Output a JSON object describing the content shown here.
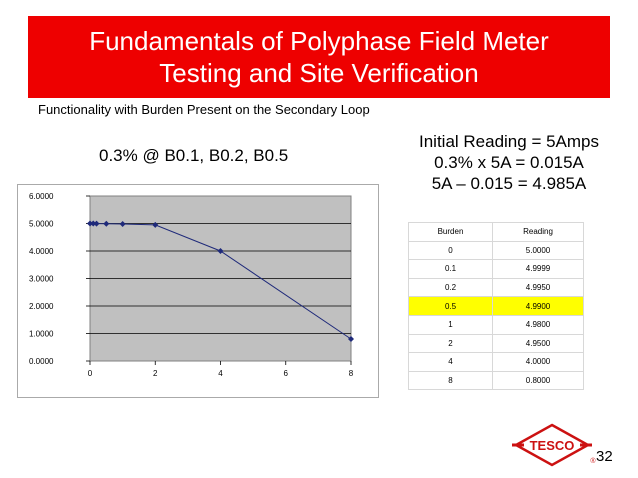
{
  "slide": {
    "title_line1": "Fundamentals of Polyphase Field Meter",
    "title_line2": "Testing and Site Verification",
    "subtitle": "Functionality with Burden Present on the Secondary Loop",
    "chart_caption": "0.3% @ B0.1, B0.2, B0.5",
    "calc_lines": [
      "Initial Reading = 5Amps",
      "0.3% x 5A = 0.015A",
      "5A – 0.015 = 4.985A"
    ],
    "page_number": "32",
    "logo_text": "TESCO",
    "logo_mark": "®"
  },
  "table": {
    "headers": [
      "Burden",
      "Reading"
    ],
    "rows": [
      [
        "0",
        "5.0000"
      ],
      [
        "0.1",
        "4.9999"
      ],
      [
        "0.2",
        "4.9950"
      ],
      [
        "0.5",
        "4.9900"
      ],
      [
        "1",
        "4.9800"
      ],
      [
        "2",
        "4.9500"
      ],
      [
        "4",
        "4.0000"
      ],
      [
        "8",
        "0.8000"
      ]
    ],
    "highlight_row_index": 3,
    "highlight_color": "#ffff00"
  },
  "chart_data": {
    "type": "line",
    "x": [
      0,
      0.1,
      0.2,
      0.5,
      1,
      2,
      4,
      8
    ],
    "series": [
      {
        "values": [
          5.0,
          4.9999,
          4.995,
          4.99,
          4.98,
          4.95,
          4.0,
          0.8
        ]
      }
    ],
    "xlim": [
      0,
      8
    ],
    "ylim": [
      0,
      6
    ],
    "x_ticks": [
      "0",
      "2",
      "4",
      "6",
      "8"
    ],
    "y_ticks": [
      "0.0000",
      "1.0000",
      "2.0000",
      "3.0000",
      "4.0000",
      "5.0000",
      "6.0000"
    ],
    "grid": true,
    "plot_background": "#c0c0c0",
    "line_color": "#1f2a7a"
  },
  "colors": {
    "banner": "#ee0000",
    "logo": "#cc1111"
  }
}
